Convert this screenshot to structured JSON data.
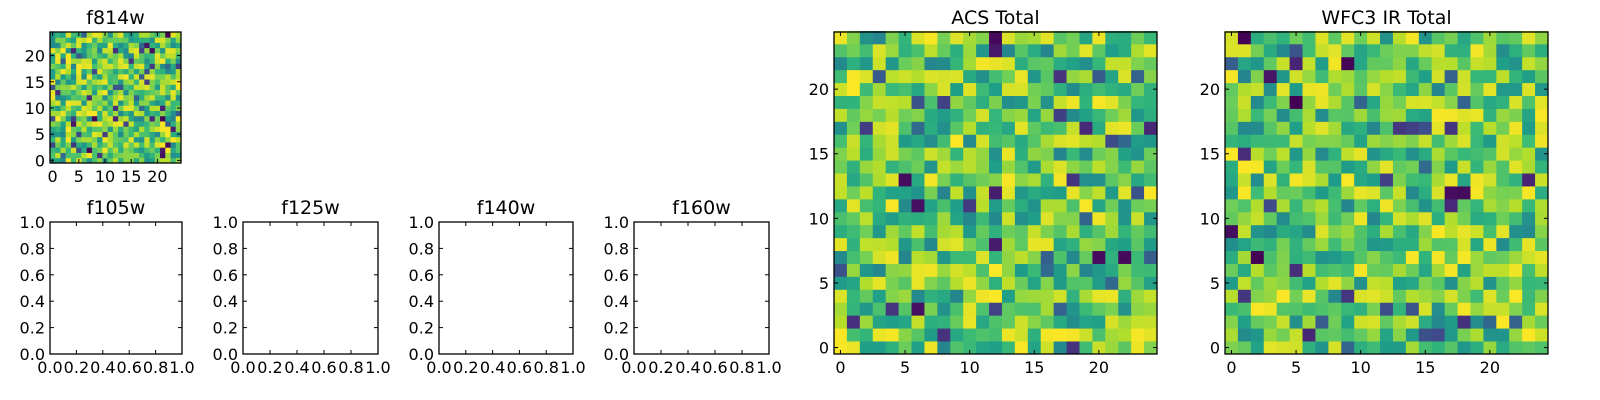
{
  "chart_data": [
    {
      "id": "f814w",
      "type": "heatmap",
      "title": "f814w",
      "grid_size": 25,
      "colormap": "viridis",
      "xticks": [
        "0",
        "5",
        "10",
        "15",
        "20"
      ],
      "yticks": [
        "0",
        "5",
        "10",
        "15",
        "20"
      ],
      "seed": 814
    },
    {
      "id": "f105w",
      "type": "empty",
      "title": "f105w",
      "xticks": [
        "0.0",
        "0.2",
        "0.4",
        "0.6",
        "0.8",
        "1.0"
      ],
      "yticks": [
        "0.0",
        "0.2",
        "0.4",
        "0.6",
        "0.8",
        "1.0"
      ]
    },
    {
      "id": "f125w",
      "type": "empty",
      "title": "f125w",
      "xticks": [
        "0.0",
        "0.2",
        "0.4",
        "0.6",
        "0.8",
        "1.0"
      ],
      "yticks": [
        "0.0",
        "0.2",
        "0.4",
        "0.6",
        "0.8",
        "1.0"
      ]
    },
    {
      "id": "f140w",
      "type": "empty",
      "title": "f140w",
      "xticks": [
        "0.0",
        "0.2",
        "0.4",
        "0.6",
        "0.8",
        "1.0"
      ],
      "yticks": [
        "0.0",
        "0.2",
        "0.4",
        "0.6",
        "0.8",
        "1.0"
      ]
    },
    {
      "id": "f160w",
      "type": "empty",
      "title": "f160w",
      "xticks": [
        "0.0",
        "0.2",
        "0.4",
        "0.6",
        "0.8",
        "1.0"
      ],
      "yticks": [
        "0.0",
        "0.2",
        "0.4",
        "0.6",
        "0.8",
        "1.0"
      ]
    },
    {
      "id": "acs-total",
      "type": "heatmap",
      "title": "ACS Total",
      "grid_size": 25,
      "colormap": "viridis",
      "xticks": [
        "0",
        "5",
        "10",
        "15",
        "20"
      ],
      "yticks": [
        "0",
        "5",
        "10",
        "15",
        "20"
      ],
      "seed": 1701
    },
    {
      "id": "wfc3-ir-total",
      "type": "heatmap",
      "title": "WFC3 IR Total",
      "grid_size": 25,
      "colormap": "viridis",
      "xticks": [
        "0",
        "5",
        "10",
        "15",
        "20"
      ],
      "yticks": [
        "0",
        "5",
        "10",
        "15",
        "20"
      ],
      "seed": 3141
    }
  ]
}
